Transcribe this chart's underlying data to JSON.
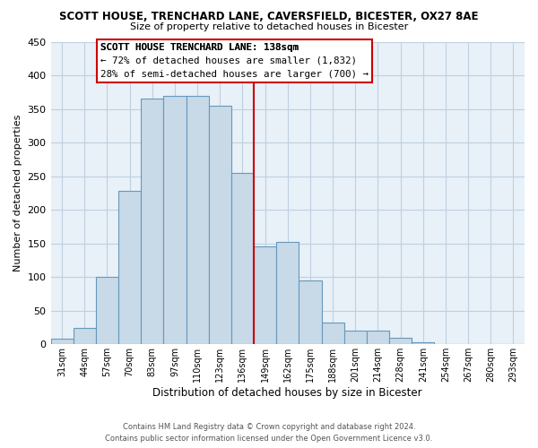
{
  "title": "SCOTT HOUSE, TRENCHARD LANE, CAVERSFIELD, BICESTER, OX27 8AE",
  "subtitle": "Size of property relative to detached houses in Bicester",
  "xlabel": "Distribution of detached houses by size in Bicester",
  "ylabel": "Number of detached properties",
  "bar_labels": [
    "31sqm",
    "44sqm",
    "57sqm",
    "70sqm",
    "83sqm",
    "97sqm",
    "110sqm",
    "123sqm",
    "136sqm",
    "149sqm",
    "162sqm",
    "175sqm",
    "188sqm",
    "201sqm",
    "214sqm",
    "228sqm",
    "241sqm",
    "254sqm",
    "267sqm",
    "280sqm",
    "293sqm"
  ],
  "bar_values": [
    8,
    25,
    100,
    228,
    365,
    370,
    370,
    355,
    255,
    145,
    152,
    95,
    33,
    21,
    21,
    10,
    3,
    1,
    1,
    0,
    1
  ],
  "bar_color": "#c8d9e8",
  "bar_edge_color": "#6699bb",
  "vline_color": "#cc0000",
  "annotation_title": "SCOTT HOUSE TRENCHARD LANE: 138sqm",
  "annotation_line1": "← 72% of detached houses are smaller (1,832)",
  "annotation_line2": "28% of semi-detached houses are larger (700) →",
  "annotation_box_color": "#ffffff",
  "annotation_box_edge_color": "#cc0000",
  "ylim": [
    0,
    450
  ],
  "yticks": [
    0,
    50,
    100,
    150,
    200,
    250,
    300,
    350,
    400,
    450
  ],
  "footer_line1": "Contains HM Land Registry data © Crown copyright and database right 2024.",
  "footer_line2": "Contains public sector information licensed under the Open Government Licence v3.0.",
  "background_color": "#ffffff",
  "plot_bg_color": "#e8f0f8",
  "grid_color": "#c0d0e0"
}
